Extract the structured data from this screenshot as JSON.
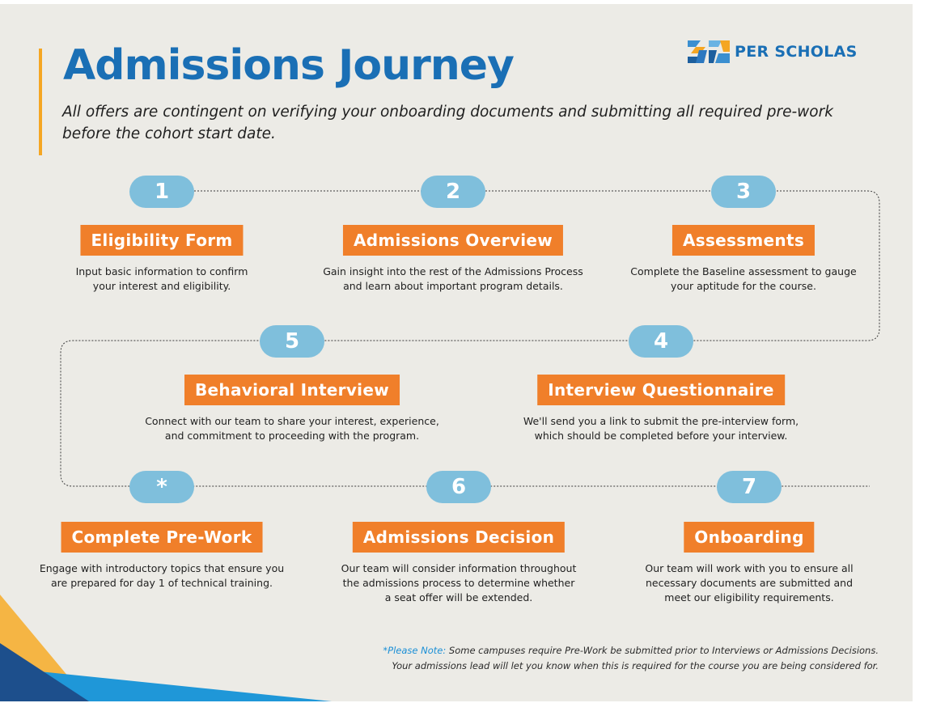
{
  "title": "Admissions Journey",
  "subtitle": "All offers are contingent on verifying your onboarding documents and submitting all required pre-work before the cohort start date.",
  "brand": {
    "name": "PER SCHOLAS",
    "logo_icon": "per-scholas-30-logo-icon",
    "primary": "#1a6fb5",
    "pill": "#7fbfdc",
    "label": "#f07f2a",
    "accent": "#f5a623"
  },
  "steps": [
    {
      "badge": "1",
      "title": "Eligibility Form",
      "line1": "Input basic information to confirm",
      "line2": "your interest and eligibility.",
      "line3": ""
    },
    {
      "badge": "2",
      "title": "Admissions Overview",
      "line1": "Gain insight into the rest of the Admissions Process",
      "line2": "and learn about important program details.",
      "line3": ""
    },
    {
      "badge": "3",
      "title": "Assessments",
      "line1": "Complete the Baseline assessment to gauge",
      "line2": "your aptitude for the course.",
      "line3": ""
    },
    {
      "badge": "4",
      "title": "Interview Questionnaire",
      "line1": "We'll send you a link to submit the pre-interview form,",
      "line2": "which should be completed before your interview.",
      "line3": ""
    },
    {
      "badge": "5",
      "title": "Behavioral Interview",
      "line1": "Connect with our team to share your interest, experience,",
      "line2": "and commitment to proceeding with the program.",
      "line3": ""
    },
    {
      "badge": "*",
      "title": "Complete Pre-Work",
      "line1": "Engage with introductory topics that ensure you",
      "line2": "are prepared for day 1 of technical training.",
      "line3": ""
    },
    {
      "badge": "6",
      "title": "Admissions Decision",
      "line1": "Our team will consider information throughout",
      "line2": "the admissions process to determine whether",
      "line3": "a seat offer will be extended."
    },
    {
      "badge": "7",
      "title": "Onboarding",
      "line1": "Our team will work with you to ensure all",
      "line2": "necessary documents are submitted and",
      "line3": "meet our eligibility requirements."
    }
  ],
  "footnote": {
    "lead": "*Please Note:",
    "line1": "Some campuses require Pre-Work be submitted prior to Interviews or Admissions Decisions.",
    "line2": "Your admissions lead will let you know when this is required for the course you are being considered for."
  }
}
